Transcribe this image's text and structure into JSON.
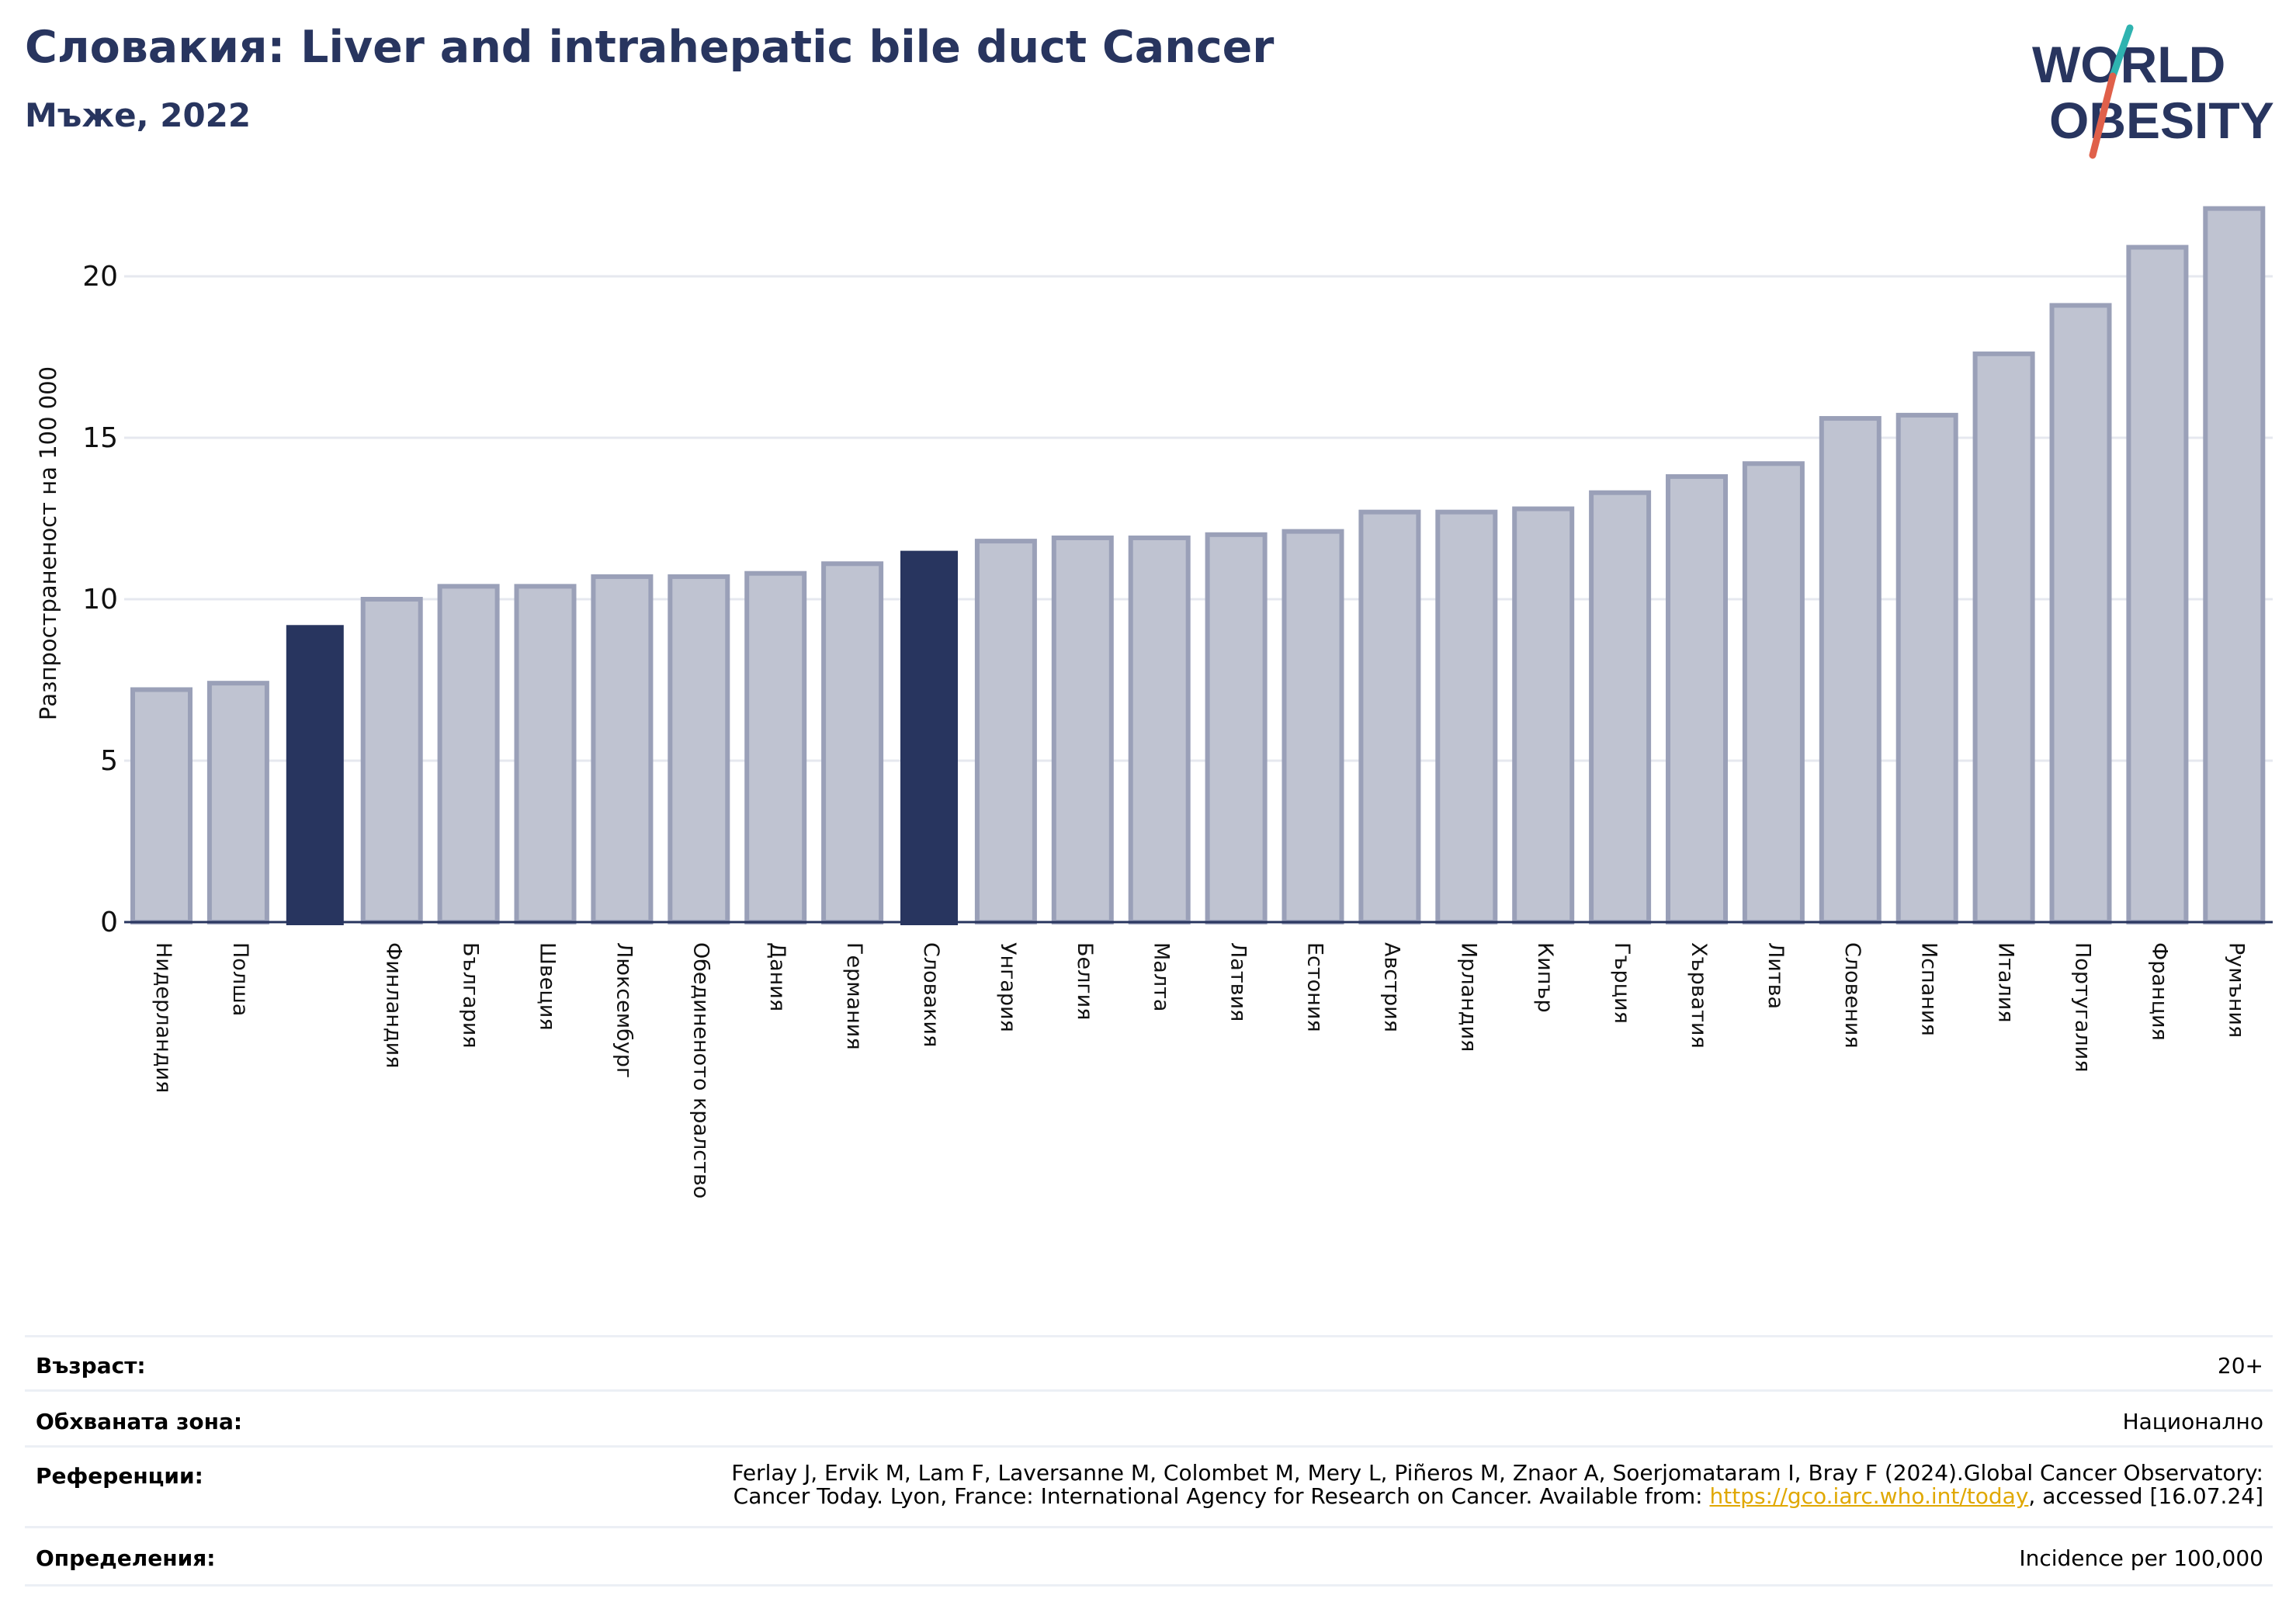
{
  "header": {
    "title": "Словакия: Liver and intrahepatic bile duct Cancer",
    "subtitle": "Мъже, 2022"
  },
  "logo": {
    "line1": "WORLD",
    "line2": "OBESITY",
    "text_color": "#28355f",
    "slash_top_color": "#2fb3b0",
    "slash_bottom_color": "#e0604a"
  },
  "colors": {
    "bar_fill": "#bfc3d1",
    "bar_stroke": "#9aa0b8",
    "highlight": "#28355f",
    "grid": "#e6e8ef",
    "axis": "#28355f"
  },
  "chart_data": {
    "type": "bar",
    "ylabel": "Разпространеност  на 100 000",
    "xlabel": "",
    "ylim": [
      0,
      22.5
    ],
    "yticks": [
      0,
      5,
      10,
      15,
      20
    ],
    "grid": true,
    "categories": [
      "Нидерландия",
      "Полша",
      "",
      "Финландия",
      "България",
      "Швеция",
      "Люксембург",
      "Обединеното кралство",
      "Дания",
      "Германия",
      "Словакия",
      "Унгария",
      "Белгия",
      "Малта",
      "Латвия",
      "Естония",
      "Австрия",
      "Ирландия",
      "Кипър",
      "Гърция",
      "Хърватия",
      "Литва",
      "Словения",
      "Испания",
      "Италия",
      "Португалия",
      "Франция",
      "Румъния"
    ],
    "values": [
      7.2,
      7.4,
      9.2,
      10.0,
      10.4,
      10.4,
      10.7,
      10.7,
      10.8,
      11.1,
      11.5,
      11.8,
      11.9,
      11.9,
      12.0,
      12.1,
      12.7,
      12.7,
      12.8,
      13.3,
      13.8,
      14.2,
      15.6,
      15.7,
      17.6,
      19.1,
      20.9,
      22.1
    ],
    "highlighted": [
      2,
      10
    ]
  },
  "info": [
    {
      "label": "Възраст:",
      "value": "20+"
    },
    {
      "label": "Обхваната зона:",
      "value": "Национално"
    },
    {
      "label": "Референции:",
      "value_line1": "Ferlay J, Ervik M, Lam F, Laversanne M, Colombet M, Mery L, Piñeros M, Znaor A, Soerjomataram I, Bray F (2024).Global Cancer Observatory:",
      "value_line2_pre": "Cancer Today. Lyon, France: International Agency for Research on Cancer. Available from: ",
      "link": "https://gco.iarc.who.int/today",
      "value_line2_post": ", accessed [16.07.24]"
    },
    {
      "label": "Определения:",
      "value": "Incidence per 100,000"
    }
  ]
}
